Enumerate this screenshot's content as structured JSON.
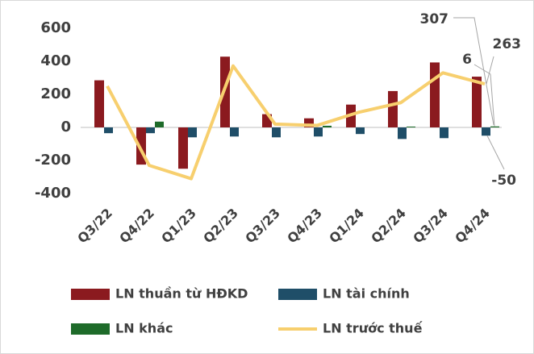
{
  "chart_data": {
    "type": "bar",
    "categories": [
      "Q3/22",
      "Q4/22",
      "Q1/23",
      "Q2/23",
      "Q3/23",
      "Q4/23",
      "Q1/24",
      "Q2/24",
      "Q3/24",
      "Q4/24"
    ],
    "series": [
      {
        "name": "LN thuần từ HĐKD",
        "color": "#8b1a1f",
        "values": [
          285,
          -225,
          -250,
          428,
          80,
          55,
          138,
          220,
          393,
          307
        ]
      },
      {
        "name": "LN tài chính",
        "color": "#1f4e68",
        "values": [
          -35,
          -35,
          -60,
          -55,
          -60,
          -55,
          -40,
          -70,
          -65,
          -50
        ]
      },
      {
        "name": "LN khác",
        "color": "#1e6b2a",
        "values": [
          0,
          35,
          0,
          0,
          0,
          10,
          0,
          5,
          0,
          6
        ]
      },
      {
        "name": "LN trước thuế",
        "color": "#f7cf6e",
        "type": "line",
        "values": [
          250,
          -230,
          -310,
          372,
          20,
          12,
          92,
          150,
          330,
          263
        ]
      }
    ],
    "ylim": [
      -400,
      600
    ],
    "yticks": [
      -400,
      -200,
      0,
      200,
      400,
      600
    ]
  }
}
